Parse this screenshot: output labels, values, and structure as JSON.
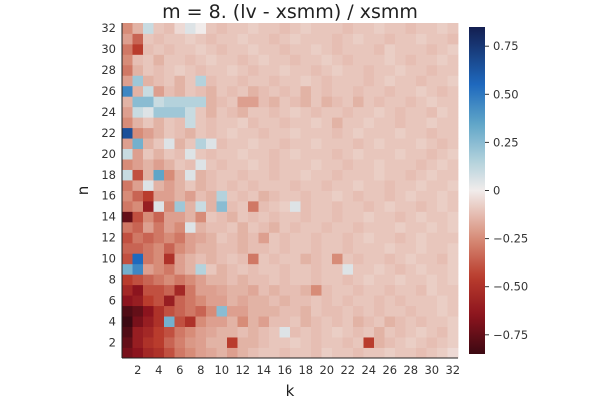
{
  "chart_data": {
    "type": "heatmap",
    "title": "m = 8. (lv - xsmm) / xsmm",
    "xlabel": "k",
    "ylabel": "n",
    "x_range": [
      1,
      32
    ],
    "y_range": [
      1,
      32
    ],
    "x_ticks": [
      "2",
      "4",
      "6",
      "8",
      "10",
      "12",
      "14",
      "16",
      "18",
      "20",
      "22",
      "24",
      "26",
      "28",
      "30",
      "32"
    ],
    "y_ticks": [
      "2",
      "4",
      "6",
      "8",
      "10",
      "12",
      "14",
      "16",
      "18",
      "20",
      "22",
      "24",
      "26",
      "28",
      "30",
      "32"
    ],
    "colorbar": {
      "range": [
        -0.85,
        0.85
      ],
      "ticks": [
        {
          "value": 0.75,
          "label": "0.75"
        },
        {
          "value": 0.5,
          "label": "0.50"
        },
        {
          "value": 0.25,
          "label": "0.25"
        },
        {
          "value": 0,
          "label": "0"
        },
        {
          "value": -0.25,
          "label": "−0.25"
        },
        {
          "value": -0.5,
          "label": "−0.50"
        },
        {
          "value": -0.75,
          "label": "−0.75"
        }
      ],
      "colormap": "balance"
    },
    "values": [
      [
        -0.7,
        -0.65,
        -0.55,
        -0.5,
        -0.4,
        -0.3,
        -0.25,
        -0.2,
        -0.18,
        -0.15,
        -0.2,
        -0.15,
        -0.12,
        -0.1,
        -0.1,
        -0.12,
        -0.1,
        -0.1,
        -0.12,
        -0.08,
        -0.1,
        -0.1,
        -0.12,
        -0.1,
        -0.1,
        -0.08,
        -0.1,
        -0.1,
        -0.12,
        -0.1,
        -0.08,
        -0.05
      ],
      [
        -0.75,
        -0.6,
        -0.5,
        -0.45,
        -0.35,
        -0.28,
        -0.22,
        -0.2,
        -0.15,
        -0.15,
        -0.45,
        -0.15,
        -0.15,
        -0.12,
        -0.1,
        -0.1,
        -0.08,
        -0.1,
        -0.12,
        -0.1,
        -0.1,
        -0.12,
        -0.1,
        -0.45,
        -0.15,
        -0.12,
        -0.1,
        -0.08,
        -0.1,
        -0.12,
        -0.1,
        -0.08
      ],
      [
        -0.8,
        -0.6,
        -0.55,
        -0.45,
        -0.4,
        -0.3,
        -0.25,
        -0.2,
        -0.18,
        -0.15,
        -0.15,
        -0.12,
        -0.15,
        -0.12,
        -0.1,
        0.05,
        -0.12,
        -0.1,
        -0.12,
        -0.1,
        -0.08,
        -0.1,
        -0.12,
        -0.1,
        -0.15,
        -0.1,
        -0.12,
        -0.1,
        -0.08,
        -0.1,
        -0.12,
        -0.08
      ],
      [
        -0.85,
        -0.7,
        -0.6,
        -0.5,
        0.3,
        -0.4,
        -0.5,
        -0.25,
        -0.2,
        -0.2,
        -0.15,
        -0.25,
        -0.15,
        -0.2,
        -0.12,
        -0.12,
        -0.1,
        -0.15,
        -0.12,
        -0.1,
        -0.12,
        -0.1,
        -0.15,
        -0.12,
        -0.1,
        -0.15,
        -0.12,
        -0.1,
        -0.12,
        -0.1,
        -0.1,
        -0.08
      ],
      [
        -0.8,
        -0.75,
        -0.65,
        -0.5,
        -0.4,
        -0.35,
        -0.3,
        -0.35,
        -0.25,
        0.25,
        -0.2,
        -0.2,
        -0.15,
        -0.15,
        -0.15,
        -0.12,
        -0.12,
        -0.15,
        -0.1,
        -0.12,
        -0.12,
        -0.1,
        -0.12,
        -0.1,
        -0.12,
        -0.1,
        -0.1,
        -0.12,
        -0.1,
        -0.1,
        -0.08,
        -0.1
      ],
      [
        -0.65,
        -0.6,
        -0.45,
        -0.4,
        -0.6,
        -0.35,
        -0.3,
        -0.25,
        -0.2,
        -0.2,
        -0.15,
        -0.18,
        -0.15,
        -0.15,
        -0.12,
        -0.15,
        -0.12,
        -0.12,
        -0.1,
        -0.12,
        -0.1,
        -0.12,
        -0.1,
        -0.1,
        -0.12,
        -0.1,
        -0.12,
        -0.1,
        -0.1,
        -0.1,
        -0.08,
        -0.1
      ],
      [
        -0.55,
        -0.65,
        -0.4,
        -0.4,
        -0.35,
        -0.55,
        -0.3,
        -0.2,
        -0.2,
        -0.18,
        -0.15,
        -0.15,
        -0.18,
        -0.12,
        -0.15,
        -0.12,
        -0.12,
        -0.15,
        -0.25,
        -0.12,
        -0.1,
        -0.1,
        -0.12,
        -0.1,
        -0.1,
        -0.12,
        -0.1,
        -0.1,
        -0.12,
        -0.08,
        -0.1,
        -0.1
      ],
      [
        -0.45,
        -0.4,
        -0.35,
        -0.3,
        -0.25,
        -0.3,
        -0.25,
        -0.2,
        -0.15,
        -0.15,
        -0.12,
        -0.15,
        -0.12,
        -0.12,
        -0.1,
        -0.12,
        -0.1,
        -0.1,
        -0.12,
        -0.1,
        -0.1,
        -0.12,
        -0.1,
        -0.08,
        -0.1,
        -0.1,
        -0.08,
        -0.1,
        -0.1,
        -0.08,
        -0.1,
        -0.08
      ],
      [
        0.3,
        0.45,
        -0.2,
        -0.25,
        -0.3,
        -0.2,
        -0.15,
        0.15,
        -0.1,
        -0.15,
        -0.12,
        -0.1,
        -0.12,
        -0.1,
        -0.1,
        -0.12,
        -0.1,
        -0.1,
        -0.12,
        -0.1,
        -0.1,
        0.05,
        -0.1,
        -0.1,
        -0.08,
        -0.1,
        -0.12,
        -0.1,
        -0.08,
        -0.1,
        -0.1,
        -0.08
      ],
      [
        -0.4,
        0.55,
        -0.3,
        -0.25,
        -0.5,
        -0.2,
        -0.15,
        -0.12,
        -0.15,
        -0.12,
        -0.1,
        -0.12,
        -0.3,
        -0.1,
        -0.12,
        -0.1,
        -0.1,
        -0.15,
        -0.12,
        -0.1,
        -0.25,
        -0.1,
        -0.12,
        -0.1,
        -0.1,
        -0.12,
        -0.1,
        -0.08,
        -0.1,
        -0.1,
        -0.12,
        -0.08
      ],
      [
        -0.35,
        -0.35,
        -0.3,
        -0.25,
        -0.35,
        -0.25,
        -0.2,
        -0.15,
        -0.15,
        -0.12,
        -0.12,
        -0.15,
        -0.12,
        -0.12,
        -0.1,
        -0.12,
        -0.1,
        -0.1,
        -0.12,
        -0.1,
        -0.1,
        -0.12,
        -0.1,
        -0.1,
        -0.1,
        -0.08,
        -0.1,
        -0.1,
        -0.08,
        -0.1,
        -0.1,
        -0.08
      ],
      [
        -0.4,
        -0.3,
        -0.35,
        -0.3,
        -0.25,
        -0.3,
        -0.2,
        -0.18,
        -0.15,
        -0.1,
        -0.12,
        -0.15,
        -0.12,
        -0.2,
        -0.1,
        -0.12,
        -0.1,
        -0.1,
        -0.12,
        -0.1,
        -0.1,
        -0.12,
        -0.1,
        -0.08,
        -0.1,
        -0.1,
        -0.12,
        -0.1,
        -0.08,
        -0.1,
        -0.1,
        -0.1
      ],
      [
        -0.3,
        -0.35,
        -0.2,
        -0.3,
        -0.2,
        -0.25,
        0.05,
        -0.15,
        -0.12,
        -0.12,
        -0.1,
        -0.15,
        -0.1,
        -0.12,
        -0.15,
        -0.1,
        -0.12,
        -0.1,
        -0.1,
        -0.12,
        -0.1,
        -0.1,
        -0.12,
        -0.1,
        -0.1,
        -0.1,
        -0.08,
        -0.1,
        -0.1,
        -0.08,
        -0.1,
        -0.08
      ],
      [
        -0.75,
        -0.4,
        -0.25,
        -0.35,
        -0.2,
        -0.2,
        -0.15,
        -0.25,
        -0.1,
        -0.12,
        -0.15,
        -0.1,
        -0.12,
        -0.1,
        -0.12,
        -0.1,
        -0.1,
        -0.12,
        -0.1,
        -0.1,
        -0.12,
        -0.1,
        -0.1,
        -0.08,
        -0.1,
        -0.1,
        -0.12,
        -0.1,
        -0.08,
        -0.1,
        -0.1,
        -0.08
      ],
      [
        -0.3,
        -0.25,
        -0.6,
        0.05,
        -0.25,
        0.2,
        -0.15,
        0.1,
        -0.15,
        0.25,
        -0.12,
        -0.1,
        -0.3,
        -0.12,
        -0.1,
        -0.08,
        0.05,
        -0.12,
        -0.1,
        -0.1,
        -0.12,
        -0.1,
        -0.1,
        -0.12,
        -0.1,
        -0.08,
        -0.1,
        -0.1,
        -0.12,
        -0.1,
        -0.08,
        -0.1
      ],
      [
        -0.25,
        -0.35,
        -0.45,
        -0.2,
        -0.2,
        -0.15,
        -0.2,
        -0.12,
        -0.15,
        0.15,
        -0.1,
        -0.12,
        -0.1,
        -0.15,
        -0.12,
        -0.1,
        -0.1,
        -0.12,
        -0.1,
        -0.1,
        -0.08,
        -0.1,
        -0.12,
        -0.1,
        -0.1,
        -0.12,
        -0.1,
        -0.08,
        -0.1,
        -0.1,
        -0.08,
        -0.1
      ],
      [
        -0.3,
        -0.2,
        0.05,
        -0.15,
        -0.2,
        -0.15,
        -0.1,
        -0.15,
        -0.12,
        -0.1,
        -0.12,
        -0.1,
        -0.12,
        -0.1,
        -0.1,
        -0.1,
        -0.12,
        -0.1,
        -0.1,
        -0.12,
        -0.1,
        -0.1,
        -0.08,
        -0.1,
        -0.1,
        -0.12,
        -0.1,
        -0.1,
        -0.08,
        -0.1,
        -0.1,
        -0.08
      ],
      [
        0.1,
        -0.4,
        -0.15,
        0.35,
        -0.25,
        -0.15,
        0.05,
        -0.15,
        -0.12,
        -0.1,
        -0.1,
        -0.12,
        -0.1,
        -0.1,
        -0.12,
        -0.1,
        -0.1,
        -0.08,
        -0.1,
        -0.1,
        -0.12,
        -0.1,
        -0.1,
        -0.1,
        -0.08,
        -0.1,
        -0.1,
        -0.12,
        -0.1,
        -0.08,
        -0.1,
        -0.1
      ],
      [
        -0.25,
        -0.2,
        -0.15,
        -0.2,
        -0.15,
        -0.1,
        -0.12,
        0.05,
        -0.1,
        -0.12,
        -0.1,
        -0.1,
        -0.08,
        -0.1,
        -0.12,
        -0.1,
        -0.1,
        -0.1,
        -0.08,
        -0.1,
        -0.1,
        -0.12,
        -0.1,
        -0.1,
        -0.08,
        -0.1,
        -0.1,
        -0.1,
        -0.12,
        -0.1,
        -0.08,
        -0.1
      ],
      [
        0.1,
        -0.2,
        -0.1,
        -0.15,
        -0.1,
        -0.12,
        0.05,
        -0.1,
        -0.12,
        -0.1,
        -0.1,
        -0.08,
        -0.1,
        -0.1,
        -0.12,
        -0.1,
        -0.08,
        -0.1,
        -0.1,
        -0.1,
        -0.12,
        -0.1,
        -0.08,
        -0.1,
        -0.1,
        -0.1,
        -0.08,
        -0.1,
        -0.1,
        -0.12,
        -0.1,
        -0.08
      ],
      [
        -0.2,
        0.3,
        -0.15,
        -0.1,
        0.05,
        -0.15,
        -0.1,
        0.15,
        0.05,
        -0.12,
        -0.1,
        -0.1,
        -0.08,
        -0.1,
        -0.1,
        -0.12,
        -0.1,
        -0.1,
        -0.08,
        -0.1,
        -0.1,
        -0.1,
        -0.12,
        -0.1,
        -0.08,
        -0.1,
        -0.1,
        -0.1,
        -0.08,
        -0.1,
        -0.12,
        -0.1
      ],
      [
        0.65,
        -0.25,
        -0.2,
        -0.15,
        -0.1,
        -0.12,
        -0.15,
        -0.1,
        -0.12,
        -0.1,
        -0.08,
        -0.1,
        -0.1,
        -0.12,
        -0.1,
        -0.1,
        -0.08,
        -0.1,
        -0.1,
        -0.1,
        -0.12,
        -0.1,
        -0.08,
        -0.1,
        -0.1,
        -0.1,
        -0.08,
        -0.1,
        -0.1,
        -0.12,
        -0.1,
        -0.1
      ],
      [
        -0.25,
        -0.15,
        -0.1,
        -0.15,
        -0.1,
        -0.12,
        0.1,
        -0.1,
        -0.12,
        -0.1,
        -0.1,
        -0.08,
        -0.12,
        -0.1,
        -0.1,
        -0.12,
        -0.1,
        -0.1,
        -0.08,
        -0.1,
        -0.15,
        -0.1,
        -0.1,
        -0.08,
        -0.1,
        -0.1,
        -0.12,
        -0.1,
        -0.1,
        -0.08,
        -0.1,
        -0.1
      ],
      [
        -0.2,
        0.1,
        0.05,
        0.2,
        0.2,
        0.2,
        0.1,
        -0.1,
        -0.15,
        -0.1,
        -0.12,
        -0.15,
        -0.1,
        -0.1,
        -0.12,
        -0.1,
        -0.08,
        -0.1,
        -0.12,
        -0.1,
        -0.1,
        -0.12,
        -0.1,
        -0.1,
        -0.08,
        -0.1,
        -0.12,
        -0.1,
        -0.1,
        -0.12,
        -0.08,
        -0.1
      ],
      [
        -0.15,
        0.25,
        0.25,
        0.1,
        0.15,
        0.15,
        0.15,
        0.15,
        -0.15,
        -0.12,
        -0.1,
        -0.2,
        -0.2,
        -0.12,
        -0.15,
        -0.1,
        -0.12,
        -0.15,
        -0.1,
        -0.15,
        -0.12,
        -0.1,
        -0.15,
        -0.1,
        -0.12,
        -0.1,
        -0.1,
        -0.12,
        -0.1,
        -0.08,
        -0.1,
        -0.1
      ],
      [
        0.45,
        -0.15,
        0.1,
        -0.2,
        -0.12,
        -0.15,
        -0.1,
        -0.12,
        -0.15,
        -0.1,
        -0.12,
        -0.1,
        -0.15,
        -0.12,
        -0.1,
        -0.12,
        -0.1,
        -0.15,
        -0.1,
        -0.12,
        -0.1,
        -0.1,
        -0.12,
        -0.1,
        -0.1,
        -0.12,
        -0.1,
        -0.1,
        -0.08,
        -0.1,
        -0.12,
        -0.1
      ],
      [
        -0.2,
        0.2,
        -0.15,
        -0.12,
        -0.1,
        -0.15,
        -0.1,
        0.15,
        -0.12,
        -0.1,
        -0.1,
        -0.12,
        -0.1,
        -0.1,
        -0.12,
        -0.1,
        -0.1,
        -0.08,
        -0.1,
        -0.12,
        -0.1,
        -0.1,
        -0.1,
        -0.12,
        -0.1,
        -0.08,
        -0.1,
        -0.1,
        -0.12,
        -0.1,
        -0.1,
        -0.08
      ],
      [
        -0.3,
        -0.15,
        -0.1,
        -0.12,
        -0.1,
        -0.08,
        -0.1,
        -0.12,
        -0.1,
        -0.1,
        -0.08,
        -0.1,
        -0.12,
        -0.1,
        -0.1,
        -0.08,
        -0.1,
        -0.1,
        -0.12,
        -0.1,
        -0.08,
        -0.1,
        -0.1,
        -0.12,
        -0.1,
        -0.1,
        -0.08,
        -0.1,
        -0.1,
        -0.12,
        -0.1,
        -0.1
      ],
      [
        -0.25,
        -0.12,
        -0.1,
        -0.15,
        -0.1,
        -0.1,
        -0.12,
        -0.1,
        -0.08,
        -0.1,
        -0.1,
        -0.12,
        -0.1,
        -0.08,
        -0.1,
        -0.1,
        -0.12,
        -0.1,
        -0.1,
        -0.08,
        -0.1,
        -0.12,
        -0.1,
        -0.1,
        -0.1,
        -0.08,
        -0.1,
        -0.12,
        -0.1,
        -0.1,
        -0.08,
        -0.1
      ],
      [
        -0.3,
        -0.45,
        -0.12,
        -0.1,
        -0.12,
        -0.1,
        -0.1,
        -0.08,
        -0.1,
        -0.12,
        -0.1,
        -0.1,
        -0.08,
        -0.1,
        -0.1,
        -0.12,
        -0.1,
        -0.1,
        -0.08,
        -0.1,
        -0.12,
        -0.1,
        -0.1,
        -0.1,
        -0.12,
        -0.08,
        -0.1,
        -0.1,
        -0.1,
        -0.12,
        -0.1,
        -0.08
      ],
      [
        -0.2,
        -0.35,
        -0.1,
        -0.12,
        -0.1,
        -0.1,
        -0.08,
        -0.1,
        -0.12,
        -0.1,
        -0.1,
        -0.08,
        -0.1,
        -0.1,
        -0.12,
        -0.1,
        -0.08,
        -0.1,
        -0.1,
        -0.1,
        -0.12,
        -0.1,
        -0.08,
        -0.1,
        -0.1,
        -0.12,
        -0.1,
        -0.1,
        -0.08,
        -0.1,
        -0.1,
        -0.12
      ],
      [
        -0.25,
        -0.15,
        0.1,
        -0.1,
        -0.12,
        -0.05,
        0.05,
        0.0,
        -0.1,
        -0.12,
        -0.1,
        -0.1,
        -0.08,
        -0.1,
        -0.1,
        -0.12,
        -0.1,
        -0.08,
        -0.1,
        -0.1,
        -0.1,
        -0.12,
        -0.1,
        -0.1,
        -0.08,
        -0.1,
        -0.1,
        -0.12,
        -0.1,
        -0.1,
        -0.08,
        -0.1
      ]
    ],
    "values_orientation": "rows ordered n = 1..32 (bottom to top), columns k = 1..32 (left to right)"
  }
}
